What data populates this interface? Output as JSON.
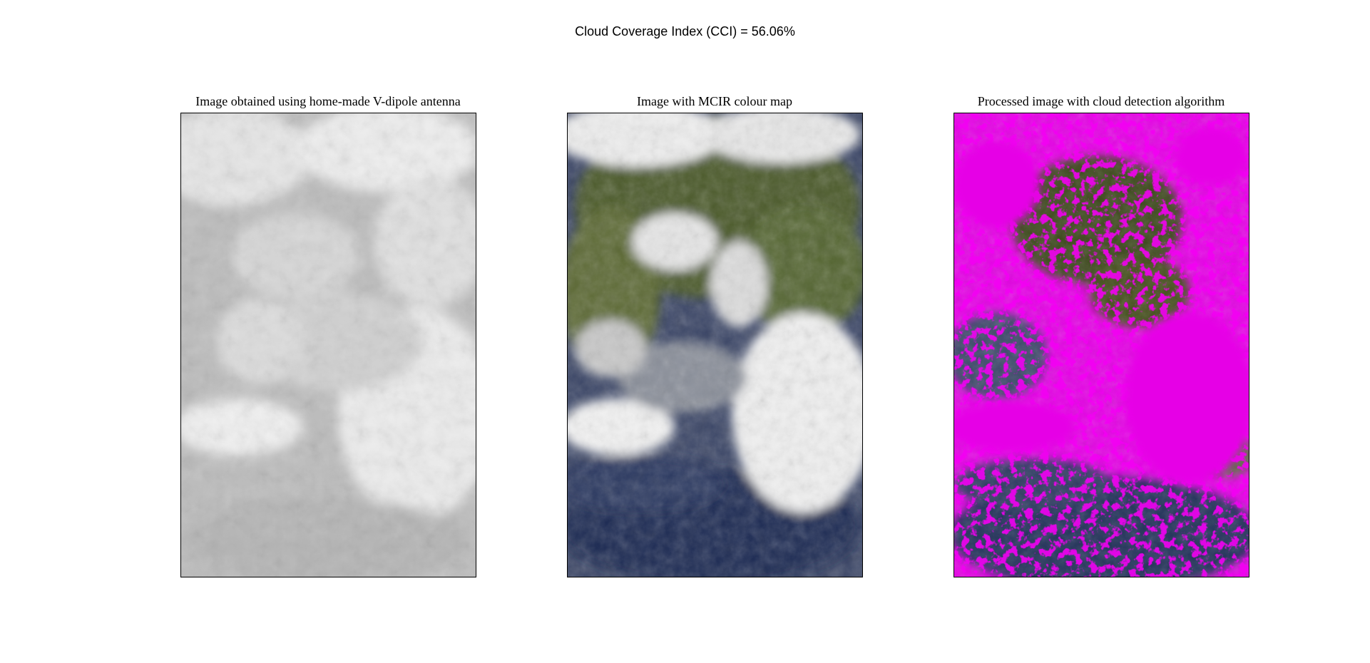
{
  "figure": {
    "suptitle": "Cloud Coverage Index (CCI) = 56.06%"
  },
  "panels": [
    {
      "title": "Image obtained using home-made V-dipole antenna",
      "variant": "grayscale"
    },
    {
      "title": "Image with MCIR colour map",
      "variant": "mcir"
    },
    {
      "title": "Processed image with cloud detection algorithm",
      "variant": "cloud-mask"
    }
  ],
  "colors": {
    "cloud_mask": "#e600e6",
    "ocean": "#1e2a4f",
    "land": "#3f4a1f",
    "cloud": "#f2f2f2",
    "gray_background": "#bdbdbd"
  }
}
